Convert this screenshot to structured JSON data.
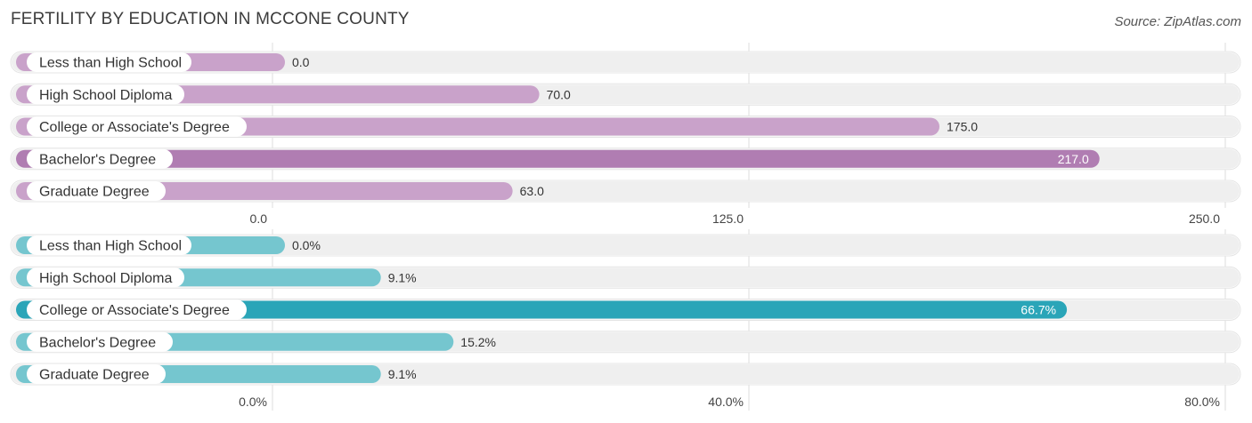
{
  "title": "FERTILITY BY EDUCATION IN MCCONE COUNTY",
  "source": "Source: ZipAtlas.com",
  "colors": {
    "purple_light": "#c9a2ca",
    "purple_dark": "#b07db2",
    "teal_light": "#75c6cf",
    "teal_dark": "#2aa5b8",
    "track": "#efefef",
    "grid": "#dcdcdc"
  },
  "chart_data": [
    {
      "type": "bar",
      "orientation": "horizontal",
      "categories": [
        "Less than High School",
        "High School Diploma",
        "College or Associate's Degree",
        "Bachelor's Degree",
        "Graduate Degree"
      ],
      "values": [
        0.0,
        70.0,
        175.0,
        217.0,
        63.0
      ],
      "value_labels": [
        "0.0",
        "70.0",
        "175.0",
        "217.0",
        "63.0"
      ],
      "xlim": [
        0,
        250
      ],
      "ticks": [
        0,
        125,
        250
      ],
      "tick_labels": [
        "0.0",
        "125.0",
        "250.0"
      ]
    },
    {
      "type": "bar",
      "orientation": "horizontal",
      "categories": [
        "Less than High School",
        "High School Diploma",
        "College or Associate's Degree",
        "Bachelor's Degree",
        "Graduate Degree"
      ],
      "values": [
        0.0,
        9.1,
        66.7,
        15.2,
        9.1
      ],
      "value_labels": [
        "0.0%",
        "9.1%",
        "66.7%",
        "15.2%",
        "9.1%"
      ],
      "xlim": [
        0,
        80
      ],
      "ticks": [
        0,
        40,
        80
      ],
      "tick_labels": [
        "0.0%",
        "40.0%",
        "80.0%"
      ]
    }
  ]
}
